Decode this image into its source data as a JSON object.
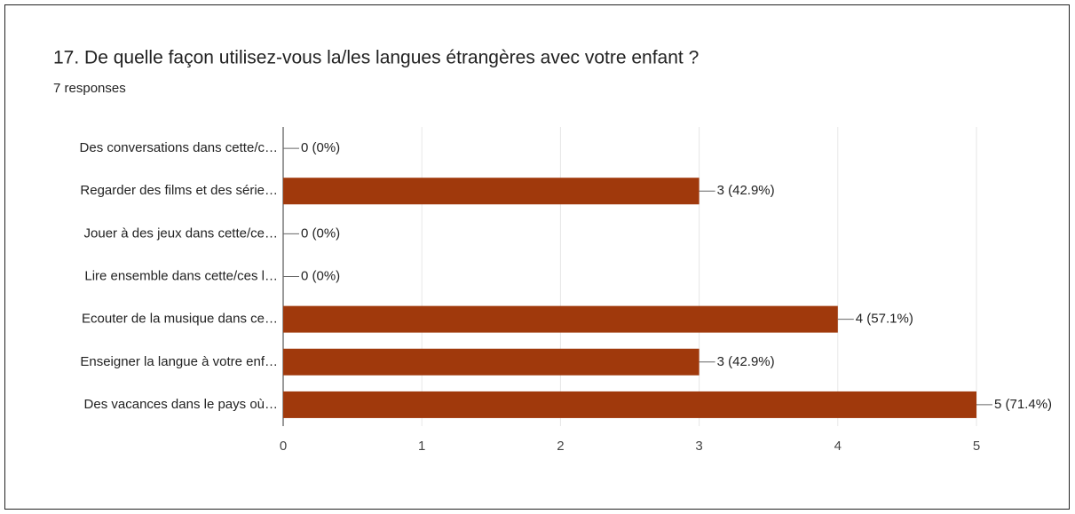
{
  "chart_data": {
    "type": "hbar",
    "title": "17. De quelle façon utilisez-vous la/les langues étrangères avec votre enfant ?",
    "subtitle": "7 responses",
    "categories": [
      "Des conversations dans cette/c…",
      "Regarder des films et des série…",
      "Jouer à des jeux dans cette/ce…",
      "Lire ensemble dans cette/ces l…",
      "Ecouter de la musique dans ce…",
      "Enseigner la langue à votre enf…",
      "Des vacances dans le pays où…"
    ],
    "values": [
      0,
      3,
      0,
      0,
      4,
      3,
      5
    ],
    "value_labels": [
      "0 (0%)",
      "3 (42.9%)",
      "0 (0%)",
      "0 (0%)",
      "4 (57.1%)",
      "3 (42.9%)",
      "5 (71.4%)"
    ],
    "color": "#a0390c",
    "xlim": [
      0,
      5
    ],
    "xticks": [
      0,
      1,
      2,
      3,
      4,
      5
    ],
    "grid": true
  }
}
